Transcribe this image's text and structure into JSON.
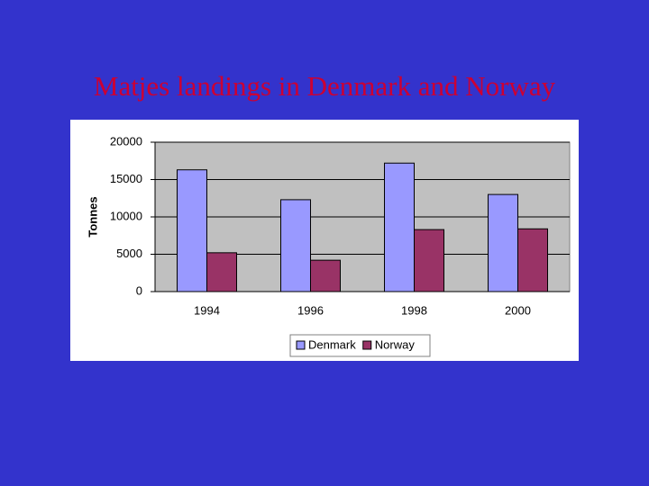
{
  "chart_data": {
    "type": "bar",
    "title": "Matjes landings in Denmark and Norway",
    "y_label": "Tonnes",
    "categories": [
      "1994",
      "1996",
      "1998",
      "2000"
    ],
    "series": [
      {
        "name": "Denmark",
        "color": "#9999ff",
        "values": [
          16300,
          12300,
          17200,
          13000
        ]
      },
      {
        "name": "Norway",
        "color": "#993366",
        "values": [
          5200,
          4200,
          8300,
          8400
        ]
      }
    ],
    "ylim": [
      0,
      20000
    ],
    "yticks": [
      0,
      5000,
      10000,
      15000,
      20000
    ],
    "grid": true,
    "legend": "bottom"
  }
}
